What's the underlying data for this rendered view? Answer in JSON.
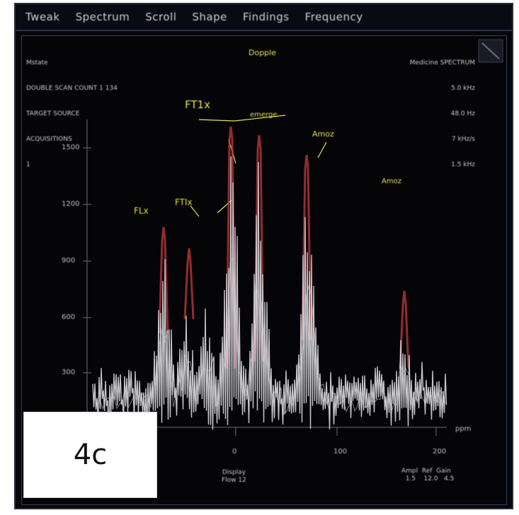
{
  "menu": {
    "items": [
      "Tweak",
      "Spectrum",
      "Scroll",
      "Shape",
      "Findings",
      "Frequency"
    ]
  },
  "header": {
    "left_lines": [
      "Mstate",
      "DOUBLE SCAN COUNT 1 134",
      "TARGET SOURCE",
      "ACQUISITIONS",
      "1"
    ],
    "center": "Dopple",
    "right_lines": [
      "Medicine SPECTRUM",
      "5.0 kHz",
      "48.0 Hz",
      "7 kHz/s",
      "1.5 kHz"
    ]
  },
  "plot": {
    "y_ticks": [
      "1500",
      "1200",
      "900",
      "600",
      "300"
    ],
    "x_ticks": [
      "0",
      "100",
      "200"
    ],
    "x_unit": "ppm"
  },
  "annotations": {
    "peak1": "FLx",
    "peak2": "FTIx",
    "peak3": "FT1x",
    "peak3_sub": "emerge",
    "peak4": "Amoz",
    "peak5": "Amoz"
  },
  "footer": {
    "center": "Display\nFlow 12",
    "right": "Ampl  Ref  Gain\n  1.5    12.0   4.5"
  },
  "panel_label": "4c",
  "colors": {
    "trace_main": "#e6e6ea",
    "trace_red": "#c23a3f",
    "annotation": "#e8e05a",
    "background": "#050508"
  }
}
